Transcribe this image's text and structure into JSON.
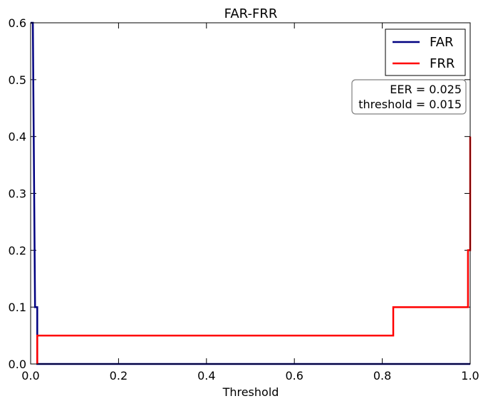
{
  "chart_data": {
    "type": "line",
    "title": "FAR-FRR",
    "xlabel": "Threshold",
    "ylabel": "",
    "xlim": [
      0.0,
      1.0
    ],
    "ylim": [
      0.0,
      0.6
    ],
    "xticks": [
      0.0,
      0.2,
      0.4,
      0.6,
      0.8,
      1.0
    ],
    "xtick_labels": [
      "0.0",
      "0.2",
      "0.4",
      "0.6",
      "0.8",
      "1.0"
    ],
    "yticks": [
      0.0,
      0.1,
      0.2,
      0.3,
      0.4,
      0.5,
      0.6
    ],
    "ytick_labels": [
      "0.0",
      "0.1",
      "0.2",
      "0.3",
      "0.4",
      "0.5",
      "0.6"
    ],
    "grid": false,
    "legend_position": "top-right",
    "series": [
      {
        "name": "FAR",
        "color": "#000080",
        "x": [
          0.0,
          0.005,
          0.01,
          0.015,
          0.015,
          1.0
        ],
        "y": [
          0.6,
          0.6,
          0.1,
          0.1,
          0.0,
          0.0
        ]
      },
      {
        "name": "FRR",
        "color": "#ff0000",
        "x": [
          0.015,
          0.015,
          0.825,
          0.825,
          0.995,
          0.995,
          1.0,
          1.0
        ],
        "y": [
          0.0,
          0.05,
          0.05,
          0.1,
          0.1,
          0.2,
          0.2,
          0.4
        ]
      }
    ],
    "annotation": {
      "lines": [
        "EER = 0.025",
        "threshold = 0.015"
      ],
      "position": "upper-right"
    }
  }
}
